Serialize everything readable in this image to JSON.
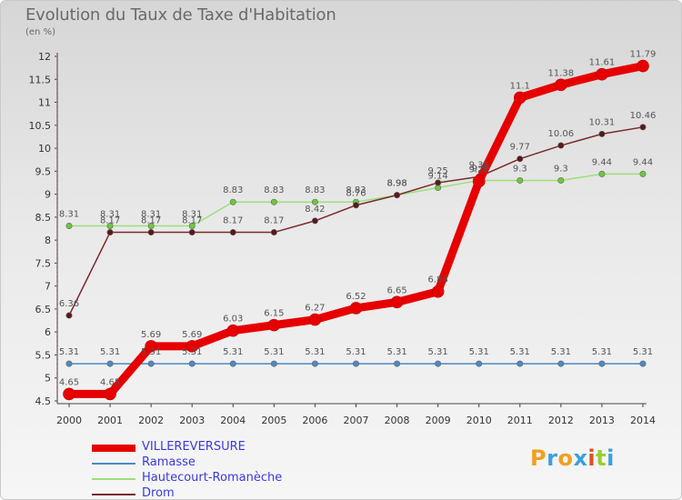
{
  "title": "Evolution du Taux de Taxe d'Habitation",
  "subtitle": "(en %)",
  "logo": {
    "letters": [
      "P",
      "r",
      "o",
      "x",
      "i",
      "t",
      "i"
    ],
    "colors": [
      "#f0a020",
      "#3aa0e0",
      "#f0a020",
      "#3aa0e0",
      "#e05020",
      "#9acd32",
      "#3aa0e0"
    ]
  },
  "chart_data": {
    "type": "line",
    "categories": [
      "2000",
      "2001",
      "2002",
      "2003",
      "2004",
      "2005",
      "2006",
      "2007",
      "2008",
      "2009",
      "2010",
      "2011",
      "2012",
      "2013",
      "2014"
    ],
    "ylim": [
      4.5,
      12
    ],
    "yticks": [
      4.5,
      5,
      5.5,
      6,
      6.5,
      7,
      7.5,
      8,
      8.5,
      9,
      9.5,
      10,
      10.5,
      11,
      11.5,
      12
    ],
    "ytick_labels": [
      "4.5",
      "5",
      "5.5",
      "6",
      "6.5",
      "7",
      "7.5",
      "8",
      "8.5",
      "9",
      "9.5",
      "10",
      "10.5",
      "11",
      "11.5",
      "12"
    ],
    "grid": false,
    "legend_position": "bottom-left",
    "series": [
      {
        "name": "Ramasse",
        "color": "#4a8ac4",
        "point_color": "#4a8ac4",
        "values": [
          5.31,
          5.31,
          5.31,
          5.31,
          5.31,
          5.31,
          5.31,
          5.31,
          5.31,
          5.31,
          5.31,
          5.31,
          5.31,
          5.31,
          5.31
        ],
        "labels": [
          "5.31",
          "5.31",
          "5.31",
          "5.31",
          "5.31",
          "5.31",
          "5.31",
          "5.31",
          "5.31",
          "5.31",
          "5.31",
          "5.31",
          "5.31",
          "5.31",
          "5.31"
        ]
      },
      {
        "name": "Hautecourt-Romanèche",
        "color": "#9be07a",
        "point_color": "#6cc83c",
        "values": [
          8.31,
          8.31,
          8.31,
          8.31,
          8.83,
          8.83,
          8.83,
          8.83,
          8.98,
          9.14,
          9.3,
          9.3,
          9.3,
          9.44,
          9.44
        ],
        "labels": [
          "8.31",
          "8.31",
          "8.31",
          "8.31",
          "8.83",
          "8.83",
          "8.83",
          "8.83",
          "8.98",
          "9.14",
          "9.3",
          "9.3",
          "9.3",
          "9.44",
          "9.44"
        ]
      },
      {
        "name": "Drom",
        "color": "#7a2a2a",
        "point_color": "#5a1818",
        "values": [
          6.36,
          8.17,
          8.17,
          8.17,
          8.17,
          8.17,
          8.42,
          8.76,
          8.98,
          9.25,
          9.38,
          9.77,
          10.06,
          10.31,
          10.46
        ],
        "labels": [
          "6.36",
          "8.17",
          "8.17",
          "8.17",
          "8.17",
          "8.17",
          "8.42",
          "8.76",
          "8.98",
          "9.25",
          "9.38",
          "9.77",
          "10.06",
          "10.31",
          "10.46"
        ]
      },
      {
        "name": "VILLEREVERSURE",
        "color": "#e60000",
        "point_color": "#e60000",
        "values": [
          4.65,
          4.65,
          5.69,
          5.69,
          6.03,
          6.15,
          6.27,
          6.52,
          6.65,
          6.88,
          9.28,
          11.1,
          11.38,
          11.61,
          11.79
        ],
        "labels": [
          "4.65",
          "4.65",
          "5.69",
          "5.69",
          "6.03",
          "6.15",
          "6.27",
          "6.52",
          "6.65",
          "6.88",
          "9.28",
          "11.1",
          "11.38",
          "11.61",
          "11.79"
        ]
      }
    ]
  },
  "legend": [
    {
      "label": "VILLEREVERSURE",
      "color": "#e60000"
    },
    {
      "label": "Ramasse",
      "color": "#4a8ac4"
    },
    {
      "label": "Hautecourt-Romanèche",
      "color": "#9be07a"
    },
    {
      "label": "Drom",
      "color": "#7a2a2a"
    }
  ]
}
